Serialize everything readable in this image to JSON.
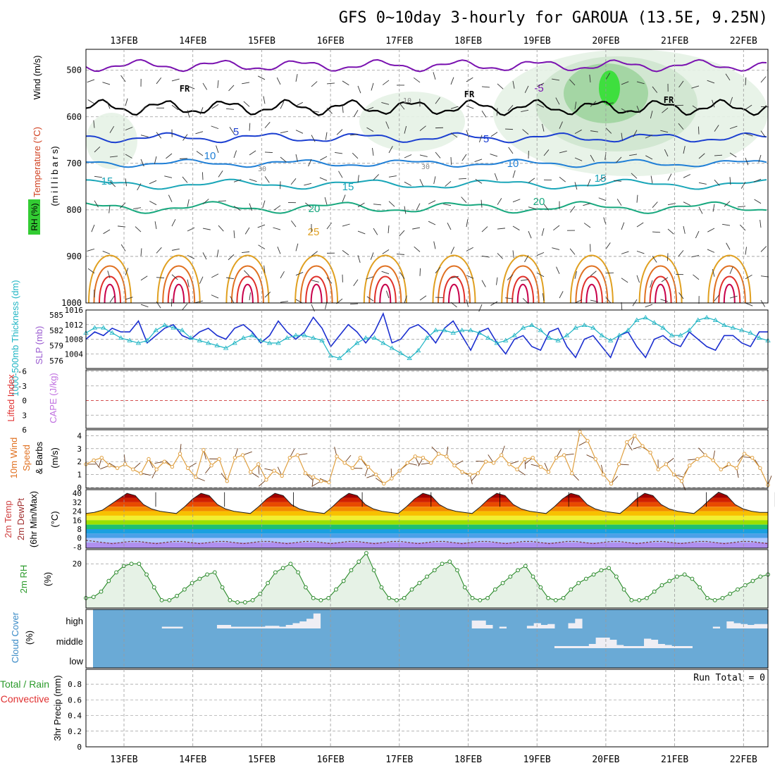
{
  "title": "GFS 0~10day 3-hourly for GAROUA (13.5E, 9.25N)",
  "colors": {
    "grid": "#9a9a9a",
    "temp_iso": [
      "#7a12b0",
      "#1b3fd1",
      "#1f7fd6",
      "#1aa6b8",
      "#17a87e",
      "#e0a020",
      "#e07020",
      "#e0302a",
      "#c8004a"
    ],
    "slp": "#1b2fd0",
    "thickness": "#1fb5c4",
    "wind10m": "#e0a040",
    "rh2m": "#2a8a2a",
    "cloud_bg": "#6aaad6",
    "cloud_bar": "#efeef4",
    "lifted_zero": "#e03030"
  },
  "x_axis": {
    "dates": [
      "13FEB",
      "14FEB",
      "15FEB",
      "16FEB",
      "17FEB",
      "18FEB",
      "19FEB",
      "20FEB",
      "21FEB",
      "22FEB"
    ]
  },
  "panels": {
    "upper_air": {
      "left_labels": {
        "wind": "Wind (m/s)",
        "temperature": "Temperature (°C)",
        "rh": "RH (%)",
        "millibars": "(m i l l i b a r s)"
      },
      "pressure_ticks": [
        "500",
        "600",
        "700",
        "800",
        "900",
        "1000"
      ],
      "freezing_label": "FR",
      "isotherm_labels": [
        "-5",
        "5",
        "10",
        "15",
        "20",
        "25"
      ],
      "rh_labels": [
        "10",
        "30"
      ]
    },
    "slp_thickness": {
      "label_thickness": "1000-500mb Thickness (dm)",
      "label_slp": "SLP (mb)",
      "thickness_ticks": [
        "585",
        "582",
        "579",
        "576"
      ],
      "slp_ticks": [
        "1016",
        "1012",
        "1008",
        "1004"
      ]
    },
    "cape_li": {
      "label_li": "Lifted Index",
      "label_cape": "CAPE (J/kg)",
      "ticks": [
        "-6",
        "-3",
        "0",
        "3",
        "6"
      ]
    },
    "wind10m": {
      "label": "10m Wind Speed & Barbs",
      "unit": "(m/s)",
      "ticks": [
        "4",
        "3",
        "2",
        "1",
        "0"
      ]
    },
    "temp2m": {
      "label": "2m Temp 2m DewPt (6hr Min/Max)",
      "unit": "(°C)",
      "ticks": [
        "40",
        "32",
        "24",
        "16",
        "8",
        "0",
        "-8"
      ]
    },
    "rh2m": {
      "label": "2m RH",
      "unit": "(%)",
      "ticks": [
        "20"
      ]
    },
    "cloud": {
      "label": "Cloud Cover",
      "unit": "(%)",
      "levels": [
        "high",
        "middle",
        "low"
      ]
    },
    "precip": {
      "label_total": "Total / Rain",
      "label_conv": "Convective",
      "label_axis": "3hr Precip (mm)",
      "run_total": "Run Total = 0",
      "ticks": [
        "0.8",
        "0.6",
        "0.4",
        "0.2",
        "0"
      ]
    }
  },
  "chart_data": [
    {
      "type": "line",
      "title": "SLP (mb)",
      "x_step_hours": 3,
      "ylim": [
        1000,
        1016
      ],
      "series": [
        {
          "name": "SLP (mb)",
          "values": [
            1008,
            1010,
            1009,
            1011,
            1010,
            1010,
            1013,
            1007,
            1009,
            1011,
            1012,
            1009,
            1008,
            1010,
            1011,
            1009,
            1008,
            1011,
            1012,
            1010,
            1007,
            1009,
            1013,
            1010,
            1008,
            1010,
            1014,
            1011,
            1006,
            1009,
            1012,
            1010,
            1007,
            1010,
            1015,
            1007,
            1008,
            1011,
            1012,
            1010,
            1007,
            1011,
            1013,
            1009,
            1005,
            1010,
            1011,
            1007,
            1004,
            1008,
            1009,
            1006,
            1005,
            1010,
            1011,
            1006,
            1003,
            1008,
            1009,
            1006,
            1003,
            1009,
            1010,
            1006,
            1003,
            1008,
            1009,
            1007,
            1006,
            1010,
            1008,
            1006,
            1005,
            1009,
            1009,
            1007,
            1006,
            1010,
            1010
          ]
        }
      ]
    },
    {
      "type": "line",
      "title": "1000-500mb Thickness (dm)",
      "x_step_hours": 3,
      "ylim": [
        576,
        586
      ],
      "series": [
        {
          "name": "Thickness (dm)",
          "values": [
            581.5,
            582.5,
            582.5,
            581.5,
            580.5,
            580,
            579.5,
            580,
            582,
            583,
            582.5,
            582,
            580.5,
            580,
            579.5,
            579,
            578.5,
            579.5,
            580.5,
            581,
            580,
            579.5,
            579.5,
            580.5,
            581,
            581,
            580.5,
            580,
            577,
            576.5,
            578,
            579.5,
            580.5,
            580.5,
            579.5,
            578.5,
            577.5,
            576.5,
            578,
            580.5,
            582,
            582,
            581.5,
            582,
            582,
            581.5,
            580.5,
            579.5,
            580,
            581,
            582.5,
            583,
            582,
            580.5,
            580,
            581,
            582.5,
            583,
            582.5,
            581,
            580,
            581,
            582,
            584,
            584.5,
            583.5,
            582.5,
            581,
            581,
            582,
            584,
            584.5,
            584,
            583,
            582.5,
            582,
            581.5,
            580.5,
            580
          ]
        }
      ]
    },
    {
      "type": "line",
      "title": "Lifted Index",
      "ylim": [
        -6,
        6
      ],
      "series": [
        {
          "name": "Lifted Index",
          "values": []
        }
      ]
    },
    {
      "type": "line",
      "title": "10m Wind Speed",
      "x_step_hours": 3,
      "ylim": [
        0,
        4
      ],
      "series": [
        {
          "name": "10m Wind Speed",
          "values": [
            1.8,
            2.1,
            2.3,
            1.7,
            1.5,
            1.8,
            1.4,
            1.1,
            2.2,
            1.4,
            2.0,
            1.6,
            2.6,
            1.5,
            0.8,
            2.9,
            1.7,
            2.2,
            0.5,
            2.3,
            2.5,
            1.2,
            1.8,
            0.6,
            1.3,
            0.9,
            2.3,
            2.5,
            1.1,
            0.8,
            0.5,
            0.4,
            2.4,
            1.9,
            1.5,
            2.3,
            1.6,
            1.0,
            0.3,
            0.7,
            1.3,
            1.9,
            2.4,
            2.3,
            1.9,
            2.6,
            2.4,
            1.7,
            1.2,
            1.0,
            1.1,
            2.0,
            1.9,
            2.5,
            1.8,
            1.4,
            2.2,
            2.3,
            1.6,
            1.2,
            2.3,
            2.5,
            1.1,
            4.3,
            3.6,
            2.2,
            1.0,
            0.3,
            1.8,
            3.5,
            4.0,
            3.2,
            2.7,
            1.4,
            1.8,
            1.0,
            0.5,
            1.7,
            2.2,
            2.5,
            2.1,
            1.4,
            1.8,
            1.5,
            2.6,
            2.3,
            1.5,
            0.2
          ]
        }
      ]
    },
    {
      "type": "area",
      "title": "2m Temp",
      "x_step_hours": 3,
      "ylim": [
        -8,
        42
      ],
      "series": [
        {
          "name": "2m Temp",
          "values": [
            22,
            23,
            25,
            30,
            35,
            40,
            38,
            30,
            26,
            24,
            23,
            22,
            28,
            35,
            40,
            38,
            30,
            26,
            24,
            23,
            22,
            28,
            35,
            40,
            38,
            30,
            26,
            24,
            23,
            22,
            28,
            35,
            40,
            38,
            30,
            26,
            24,
            23,
            22,
            28,
            35,
            40,
            38,
            30,
            26,
            24,
            23,
            22,
            28,
            35,
            40,
            38,
            30,
            26,
            24,
            23,
            22,
            28,
            35,
            40,
            38,
            30,
            26,
            24,
            23,
            22,
            28,
            35,
            40,
            38,
            30,
            26,
            24,
            23,
            22,
            28,
            35,
            41,
            38,
            30,
            26,
            24,
            23,
            23
          ]
        },
        {
          "name": "2m DewPt",
          "values": [
            -2,
            -3,
            -4,
            -5,
            -4,
            -3,
            -3,
            -4,
            -5,
            -4,
            -3,
            -3,
            -4,
            -5,
            -4,
            -3,
            -3,
            -4,
            -5,
            -4,
            -3,
            -3,
            -4,
            -5,
            -4,
            -3,
            -3,
            -4,
            -5,
            -4,
            -3,
            -3,
            -4,
            -5,
            -4,
            -3,
            -3,
            -4,
            -5,
            -4,
            -3,
            -3,
            -4,
            -5,
            -4,
            -3,
            -3,
            -4,
            -5,
            -4,
            -3,
            -3,
            -4,
            -5,
            -4,
            -3,
            -3,
            -4,
            -5,
            -4,
            -3,
            -3,
            -4,
            -5,
            -4,
            -3,
            -3,
            -4,
            -5,
            -4,
            -3,
            -3,
            -4,
            -5,
            -4,
            -3,
            -3,
            -4,
            -5
          ]
        }
      ]
    },
    {
      "type": "line",
      "title": "2m RH",
      "x_step_hours": 3,
      "ylim": [
        0,
        25
      ],
      "series": [
        {
          "name": "2m RH",
          "values": [
            4,
            4.5,
            7,
            12,
            16,
            19,
            20,
            20,
            15,
            9,
            3,
            3,
            5,
            8,
            11,
            13,
            15,
            16,
            9,
            3,
            2,
            2,
            3,
            6,
            11,
            16,
            18,
            20,
            16,
            9,
            4,
            3,
            4,
            8,
            12,
            17,
            21,
            25,
            17,
            9,
            4,
            3,
            4,
            8,
            11,
            14,
            17,
            20,
            21,
            17,
            9,
            4,
            3,
            4,
            8,
            11,
            14,
            17,
            19,
            14,
            9,
            4,
            3,
            4,
            8,
            11,
            13,
            15,
            17,
            18,
            14,
            8,
            3,
            3,
            4,
            7,
            10,
            12,
            14,
            15,
            13,
            9,
            4,
            3,
            4,
            6,
            8,
            10,
            12,
            14,
            15
          ]
        }
      ]
    },
    {
      "type": "bar",
      "title": "Cloud Cover",
      "x_step_hours": 3,
      "series": [
        {
          "name": "high",
          "values": [
            0,
            0,
            0,
            0,
            0,
            0,
            0,
            0,
            0,
            0,
            10,
            10,
            10,
            0,
            0,
            0,
            0,
            0,
            20,
            20,
            10,
            10,
            10,
            10,
            10,
            15,
            15,
            10,
            20,
            30,
            40,
            55,
            85,
            0,
            0,
            0,
            0,
            0,
            0,
            0,
            0,
            0,
            0,
            0,
            0,
            0,
            0,
            0,
            0,
            0,
            0,
            0,
            0,
            0,
            0,
            45,
            45,
            20,
            0,
            10,
            0,
            0,
            0,
            15,
            30,
            20,
            25,
            0,
            0,
            30,
            55,
            0,
            0,
            0,
            0,
            0,
            0,
            0,
            0,
            0,
            0,
            0,
            0,
            0,
            0,
            0,
            0,
            0,
            0,
            0,
            10,
            0,
            40,
            30,
            25,
            20,
            25,
            25
          ]
        },
        {
          "name": "middle",
          "values": [
            0,
            0,
            0,
            0,
            0,
            0,
            0,
            0,
            0,
            0,
            0,
            0,
            0,
            0,
            0,
            0,
            0,
            0,
            0,
            0,
            0,
            0,
            0,
            0,
            0,
            0,
            0,
            0,
            0,
            0,
            0,
            0,
            0,
            0,
            0,
            0,
            0,
            0,
            0,
            0,
            0,
            0,
            0,
            0,
            0,
            0,
            0,
            0,
            0,
            0,
            0,
            0,
            0,
            0,
            0,
            0,
            0,
            0,
            0,
            0,
            0,
            0,
            0,
            0,
            0,
            0,
            0,
            10,
            10,
            10,
            10,
            10,
            20,
            50,
            50,
            40,
            15,
            10,
            10,
            10,
            45,
            40,
            20,
            15,
            10,
            10,
            10,
            0,
            0,
            0,
            0,
            0,
            0,
            0,
            0,
            0,
            0,
            0
          ]
        },
        {
          "name": "low",
          "values": []
        }
      ]
    },
    {
      "type": "bar",
      "title": "3hr Precip (mm)",
      "ylim": [
        0,
        0.9
      ],
      "series": [
        {
          "name": "Total / Rain",
          "values": []
        }
      ]
    }
  ]
}
